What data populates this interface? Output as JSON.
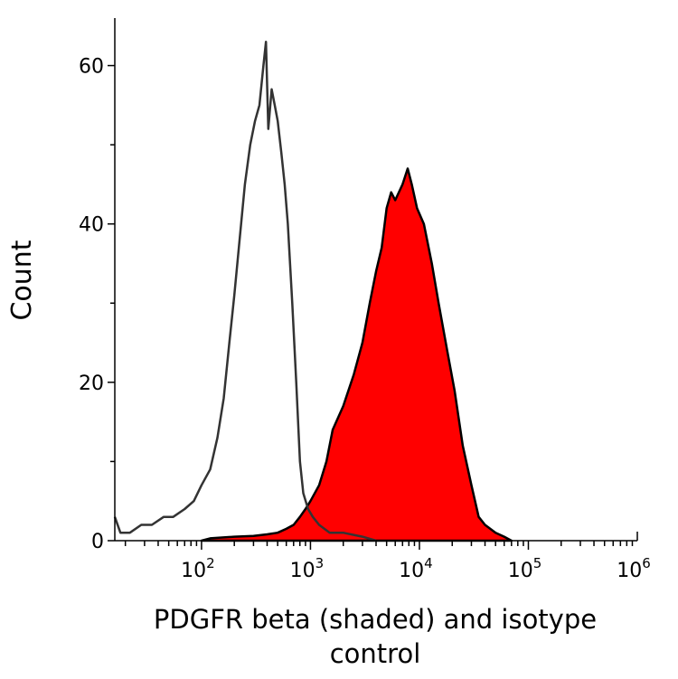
{
  "chart_data": {
    "type": "area",
    "title": "",
    "xlabel_lines": [
      "PDGFR beta (shaded) and isotype",
      "control"
    ],
    "ylabel": "Count",
    "x_scale": "log",
    "xlim": [
      16,
      1000000
    ],
    "ylim": [
      0,
      66
    ],
    "grid": false,
    "x_ticks": [
      {
        "value": 100,
        "base": "10",
        "exp": "2"
      },
      {
        "value": 1000,
        "base": "10",
        "exp": "3"
      },
      {
        "value": 10000,
        "base": "10",
        "exp": "4"
      },
      {
        "value": 100000,
        "base": "10",
        "exp": "5"
      },
      {
        "value": 1000000,
        "base": "10",
        "exp": "6"
      }
    ],
    "y_ticks": [
      {
        "value": 0,
        "label": "0"
      },
      {
        "value": 20,
        "label": "20"
      },
      {
        "value": 40,
        "label": "40"
      },
      {
        "value": 60,
        "label": "60"
      }
    ],
    "series": [
      {
        "style": "outline",
        "color": "#333333",
        "x": [
          16,
          18,
          22,
          28,
          35,
          45,
          55,
          70,
          85,
          100,
          120,
          140,
          160,
          180,
          200,
          220,
          250,
          280,
          310,
          340,
          370,
          390,
          410,
          440,
          470,
          500,
          540,
          580,
          620,
          680,
          740,
          800,
          860,
          950,
          1050,
          1200,
          1500,
          2000,
          3000,
          4000
        ],
        "y": [
          3,
          1,
          1,
          2,
          2,
          3,
          3,
          4,
          5,
          7,
          9,
          13,
          18,
          25,
          31,
          37,
          45,
          50,
          53,
          55,
          60,
          63,
          52,
          57,
          55,
          53,
          49,
          45,
          40,
          30,
          20,
          10,
          6,
          4,
          3,
          2,
          1,
          1,
          0.5,
          0
        ]
      },
      {
        "style": "filled",
        "color": "#ff0000",
        "outline_color": "#000000",
        "x": [
          100,
          120,
          200,
          300,
          400,
          500,
          600,
          700,
          800,
          900,
          1000,
          1200,
          1400,
          1600,
          2000,
          2500,
          3000,
          3500,
          4000,
          4500,
          5000,
          5500,
          6000,
          7000,
          7800,
          8500,
          9500,
          11000,
          13000,
          15000,
          18000,
          21000,
          25000,
          30000,
          35000,
          40000,
          50000,
          60000,
          70000
        ],
        "y": [
          0,
          0.3,
          0.5,
          0.6,
          0.8,
          1,
          1.5,
          2,
          3,
          4,
          5,
          7,
          10,
          14,
          17,
          21,
          25,
          30,
          34,
          37,
          42,
          44,
          43,
          45,
          47,
          45,
          42,
          40,
          35,
          30,
          24,
          19,
          12,
          7,
          3,
          2,
          1,
          0.5,
          0
        ]
      }
    ]
  }
}
